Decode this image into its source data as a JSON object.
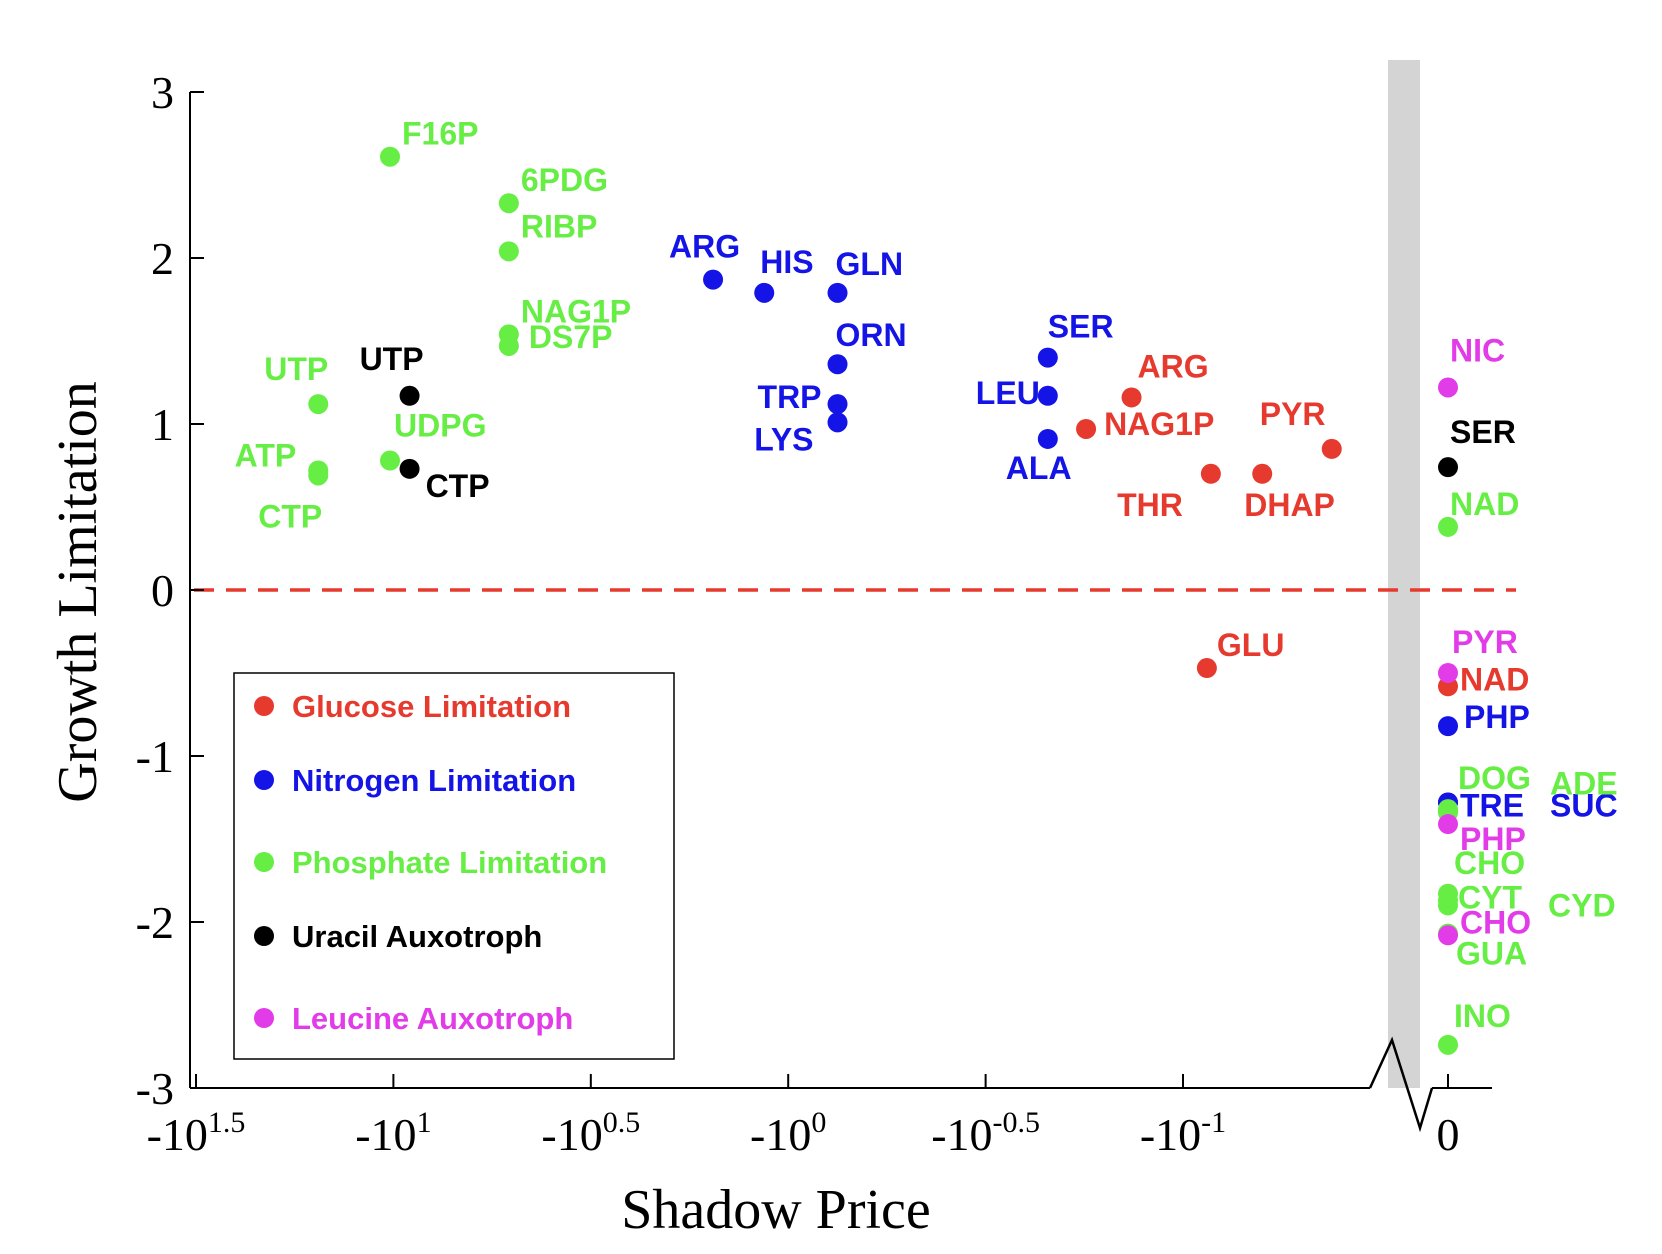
{
  "chart_data": {
    "type": "scatter",
    "xlabel": "Shadow Price",
    "ylabel": "Growth Limitation",
    "xscale": "negative log (symlog) with axis break before 0",
    "x_ticks": [
      {
        "value": -31.62,
        "base": "-10",
        "exp": "1.5"
      },
      {
        "value": -10,
        "base": "-10",
        "exp": "1"
      },
      {
        "value": -3.162,
        "base": "-10",
        "exp": "0.5"
      },
      {
        "value": -1,
        "base": "-10",
        "exp": "0"
      },
      {
        "value": -0.3162,
        "base": "-10",
        "exp": "-0.5"
      },
      {
        "value": -0.1,
        "base": "-10",
        "exp": "-1"
      },
      {
        "value": 0,
        "base": "0",
        "exp": ""
      }
    ],
    "y_ticks": [
      {
        "value": 3,
        "label": "3"
      },
      {
        "value": 2,
        "label": "2"
      },
      {
        "value": 1,
        "label": "1"
      },
      {
        "value": 0,
        "label": "0"
      },
      {
        "value": -1,
        "label": "-1"
      },
      {
        "value": -2,
        "label": "-2"
      },
      {
        "value": -3,
        "label": "-3"
      }
    ],
    "ylim": [
      -3,
      3
    ],
    "reference_line": {
      "y": 0,
      "style": "dashed",
      "color": "#e63a2e"
    },
    "axis_break": "gray band between -10^-1 region and 0",
    "legend_position": "lower-left",
    "series": [
      {
        "name": "Glucose Limitation",
        "color": "#e63a2e",
        "points": [
          {
            "label": "ARG",
            "x": -0.135,
            "y": 1.16
          },
          {
            "label": "NAG1P",
            "x": -0.176,
            "y": 0.97
          },
          {
            "label": "THR",
            "x": -0.085,
            "y": 0.7
          },
          {
            "label": "DHAP",
            "x": -0.063,
            "y": 0.7
          },
          {
            "label": "PYR",
            "x": -0.042,
            "y": 0.85
          },
          {
            "label": "GLU",
            "x": -0.087,
            "y": -0.47
          },
          {
            "label": "NAD",
            "x": 0,
            "y": -0.58
          }
        ]
      },
      {
        "name": "Nitrogen Limitation",
        "color": "#1414e6",
        "points": [
          {
            "label": "ARG",
            "x": -1.55,
            "y": 1.87
          },
          {
            "label": "HIS",
            "x": -1.15,
            "y": 1.79
          },
          {
            "label": "GLN",
            "x": -0.75,
            "y": 1.79
          },
          {
            "label": "ORN",
            "x": -0.75,
            "y": 1.36
          },
          {
            "label": "TRP",
            "x": -0.75,
            "y": 1.12
          },
          {
            "label": "LYS",
            "x": -0.75,
            "y": 1.01
          },
          {
            "label": "SER",
            "x": -0.22,
            "y": 1.4
          },
          {
            "label": "LEU",
            "x": -0.22,
            "y": 1.17
          },
          {
            "label": "ALA",
            "x": -0.22,
            "y": 0.91
          },
          {
            "label": "PHP",
            "x": 0,
            "y": -0.82
          },
          {
            "label": "TRE",
            "x": 0,
            "y": -1.28
          },
          {
            "label": "SUC",
            "x": 0,
            "y": -1.28
          }
        ]
      },
      {
        "name": "Phosphate Limitation",
        "color": "#66ee44",
        "points": [
          {
            "label": "F16P",
            "x": -10.2,
            "y": 2.61
          },
          {
            "label": "6PDG",
            "x": -5.1,
            "y": 2.33
          },
          {
            "label": "RIBP",
            "x": -5.1,
            "y": 2.04
          },
          {
            "label": "NAG1P",
            "x": -5.1,
            "y": 1.54
          },
          {
            "label": "DS7P",
            "x": -5.1,
            "y": 1.47
          },
          {
            "label": "UTP",
            "x": -15.5,
            "y": 1.12
          },
          {
            "label": "UDPG",
            "x": -10.2,
            "y": 0.78
          },
          {
            "label": "ATP",
            "x": -15.5,
            "y": 0.72
          },
          {
            "label": "CTP",
            "x": -15.5,
            "y": 0.69
          },
          {
            "label": "NAD",
            "x": 0,
            "y": 0.38
          },
          {
            "label": "DOG",
            "x": 0,
            "y": -1.32
          },
          {
            "label": "ADE",
            "x": 0,
            "y": -1.34
          },
          {
            "label": "CHO",
            "x": 0,
            "y": -1.83
          },
          {
            "label": "CYT",
            "x": 0,
            "y": -1.87
          },
          {
            "label": "CYD",
            "x": 0,
            "y": -1.9
          },
          {
            "label": "GUA",
            "x": 0,
            "y": -2.07
          },
          {
            "label": "INO",
            "x": 0,
            "y": -2.74
          }
        ]
      },
      {
        "name": "Uracil Auxotroph",
        "color": "#000000",
        "points": [
          {
            "label": "UTP",
            "x": -9.1,
            "y": 1.17
          },
          {
            "label": "CTP",
            "x": -9.1,
            "y": 0.73
          },
          {
            "label": "SER",
            "x": 0,
            "y": 0.74
          }
        ]
      },
      {
        "name": "Leucine Auxotroph",
        "color": "#e23ce8",
        "points": [
          {
            "label": "NIC",
            "x": 0,
            "y": 1.22
          },
          {
            "label": "PYR",
            "x": 0,
            "y": -0.5
          },
          {
            "label": "PHP",
            "x": 0,
            "y": -1.41
          },
          {
            "label": "CHO",
            "x": 0,
            "y": -2.08
          }
        ]
      }
    ]
  }
}
